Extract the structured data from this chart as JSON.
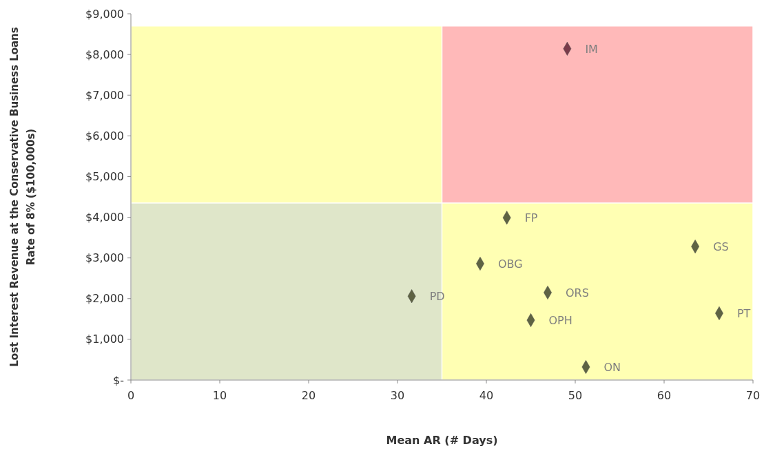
{
  "chart_data": {
    "type": "scatter",
    "xlabel": "Mean AR (# Days)",
    "ylabel": "Lost Interest Revenue at the Conservative Business  Loans\nRate of 8% ($100,000s)",
    "xlim": [
      0,
      70
    ],
    "xticks": [
      0,
      10,
      20,
      30,
      40,
      50,
      60,
      70
    ],
    "ylim": [
      0,
      9000
    ],
    "yticks": [
      {
        "value": 0,
        "label": "$-"
      },
      {
        "value": 1000,
        "label": "$1,000"
      },
      {
        "value": 2000,
        "label": "$2,000"
      },
      {
        "value": 3000,
        "label": "$3,000"
      },
      {
        "value": 4000,
        "label": "$4,000"
      },
      {
        "value": 5000,
        "label": "$5,000"
      },
      {
        "value": 6000,
        "label": "$6,000"
      },
      {
        "value": 7000,
        "label": "$7,000"
      },
      {
        "value": 8000,
        "label": "$8,000"
      },
      {
        "value": 9000,
        "label": "$9,000"
      }
    ],
    "stacked": true,
    "grid": false,
    "marker": "diamond",
    "series": [
      {
        "type": "bar",
        "x": [
          17.5,
          52.5
        ],
        "values": [
          4350,
          4350
        ],
        "colors": [
          "#dfe6c9",
          "#ffffb3"
        ]
      },
      {
        "type": "bar",
        "x": [
          17.5,
          52.5
        ],
        "values": [
          4350,
          4350
        ],
        "colors": [
          "#ffffb3",
          "#ffb9b9"
        ]
      },
      {
        "x": [
          49.1,
          42.3,
          63.5,
          39.3,
          31.6,
          46.9,
          45.0,
          66.2,
          51.2
        ],
        "values": [
          8140,
          3990,
          3280,
          2860,
          2060,
          2150,
          1470,
          1640,
          320
        ],
        "colors": [
          "#7a3b4a",
          "#5e6343",
          "#5e6343",
          "#5e6343",
          "#5e6343",
          "#5e6343",
          "#5e6343",
          "#5e6343",
          "#5e6343"
        ]
      }
    ],
    "annotations": [
      {
        "text": "IM",
        "x": 49.1,
        "y": 8140
      },
      {
        "text": "FP",
        "x": 42.3,
        "y": 3990
      },
      {
        "text": "GS",
        "x": 63.5,
        "y": 3280
      },
      {
        "text": "OBG",
        "x": 39.3,
        "y": 2860
      },
      {
        "text": "PD",
        "x": 31.6,
        "y": 2060
      },
      {
        "text": "ORS",
        "x": 46.9,
        "y": 2150
      },
      {
        "text": "OPH",
        "x": 45.0,
        "y": 1470
      },
      {
        "text": "PT",
        "x": 66.2,
        "y": 1640
      },
      {
        "text": "ON",
        "x": 51.2,
        "y": 320
      }
    ]
  }
}
